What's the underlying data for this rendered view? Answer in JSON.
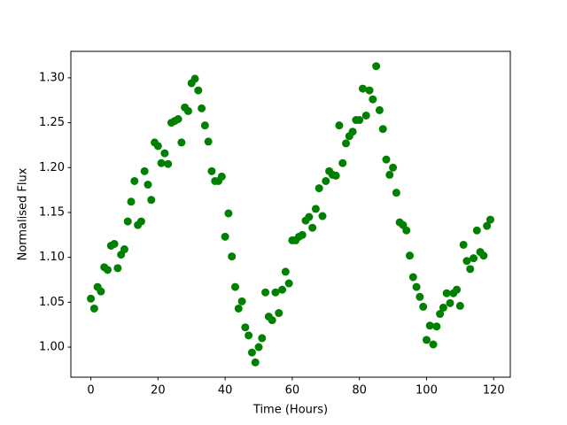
{
  "chart_data": {
    "type": "scatter",
    "x_label": "Time (Hours)",
    "y_label": "Normalised Flux",
    "color": "#008000",
    "x": [
      0,
      1,
      2,
      3,
      4,
      5,
      6,
      7,
      8,
      9,
      10,
      11,
      12,
      13,
      14,
      15,
      16,
      17,
      18,
      19,
      20,
      21,
      22,
      23,
      24,
      25,
      26,
      27,
      28,
      29,
      30,
      31,
      32,
      33,
      34,
      35,
      36,
      37,
      38,
      39,
      40,
      41,
      42,
      43,
      44,
      45,
      46,
      47,
      48,
      49,
      50,
      51,
      52,
      53,
      54,
      55,
      56,
      57,
      58,
      59,
      60,
      61,
      62,
      63,
      64,
      65,
      66,
      67,
      68,
      69,
      70,
      71,
      72,
      73,
      74,
      75,
      76,
      77,
      78,
      79,
      80,
      81,
      82,
      83,
      84,
      85,
      86,
      87,
      88,
      89,
      90,
      91,
      92,
      93,
      94,
      95,
      96,
      97,
      98,
      99,
      100,
      101,
      102,
      103,
      104,
      105,
      106,
      107,
      108,
      109,
      110,
      111,
      112,
      113,
      114,
      115,
      116,
      117,
      118,
      119
    ],
    "values": [
      1.054,
      1.043,
      1.067,
      1.062,
      1.089,
      1.086,
      1.113,
      1.115,
      1.088,
      1.103,
      1.109,
      1.14,
      1.162,
      1.185,
      1.136,
      1.14,
      1.196,
      1.181,
      1.164,
      1.228,
      1.224,
      1.205,
      1.216,
      1.204,
      1.25,
      1.252,
      1.254,
      1.228,
      1.267,
      1.263,
      1.294,
      1.299,
      1.286,
      1.266,
      1.247,
      1.229,
      1.196,
      1.185,
      1.185,
      1.19,
      1.123,
      1.149,
      1.101,
      1.067,
      1.043,
      1.051,
      1.022,
      1.013,
      0.994,
      0.983,
      1.0,
      1.01,
      1.061,
      1.034,
      1.03,
      1.061,
      1.038,
      1.064,
      1.084,
      1.071,
      1.119,
      1.119,
      1.123,
      1.125,
      1.141,
      1.145,
      1.133,
      1.154,
      1.177,
      1.146,
      1.185,
      1.196,
      1.192,
      1.191,
      1.247,
      1.205,
      1.227,
      1.235,
      1.24,
      1.253,
      1.253,
      1.288,
      1.258,
      1.286,
      1.276,
      1.313,
      1.264,
      1.243,
      1.209,
      1.192,
      1.2,
      1.172,
      1.139,
      1.136,
      1.13,
      1.102,
      1.078,
      1.067,
      1.056,
      1.045,
      1.008,
      1.024,
      1.003,
      1.023,
      1.037,
      1.044,
      1.06,
      1.049,
      1.06,
      1.064,
      1.046,
      1.114,
      1.096,
      1.087,
      1.099,
      1.13,
      1.106,
      1.102,
      1.135,
      1.142
    ],
    "xlim": [
      -5.95,
      124.95
    ],
    "xticks": [
      0,
      20,
      40,
      60,
      80,
      100,
      120
    ],
    "ylim": [
      0.9665,
      1.3295
    ],
    "yticks": [
      {
        "value": 1.0,
        "label": "1.00"
      },
      1.05,
      {
        "value": 1.1,
        "label": "1.10"
      },
      1.15,
      {
        "value": 1.2,
        "label": "1.20"
      },
      1.25,
      {
        "value": 1.3,
        "label": "1.30"
      }
    ]
  }
}
